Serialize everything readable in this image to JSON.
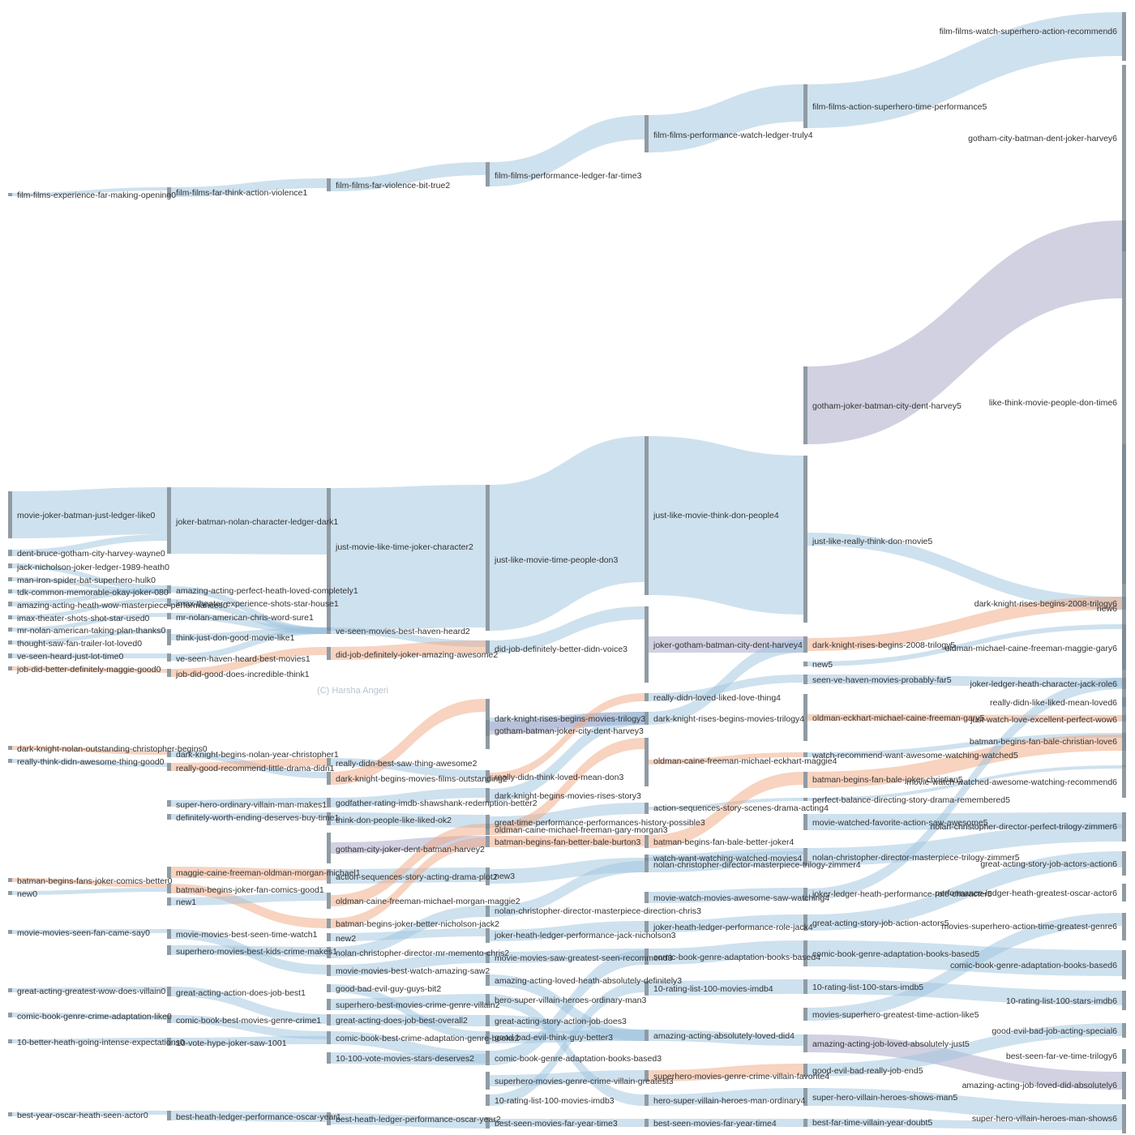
{
  "watermark": "(C) Harsha Angeri",
  "colors": {
    "blue": "#9dc3de",
    "blue_dark": "#7aa7c7",
    "purple": "#a4a4c6",
    "orange": "#f0a782",
    "node": "#7d8a93"
  },
  "levels": [
    {
      "level": 0,
      "nodes": [
        "film-films-experience-far-making-opening0",
        "movie-joker-batman-just-ledger-like0",
        "dent-bruce-gotham-city-harvey-wayne0",
        "jack-nicholson-joker-ledger-1989-heath0",
        "man-iron-spider-bat-superhero-hulk0",
        "tdk-common-memorable-okay-joker-080",
        "amazing-acting-heath-wow-masterpiece-performances0",
        "imax-theater-shots-shot-star-used0",
        "mr-nolan-american-taking-plan-thanks0",
        "thought-saw-fan-trailer-lot-loved0",
        "ve-seen-heard-just-lot-time0",
        "job-did-better-definitely-maggie-good0",
        "dark-knight-nolan-outstanding-christopher-begins0",
        "really-think-didn-awesome-thing-good0",
        "batman-begins-fans-joker-comics-better0",
        "new0",
        "movie-movies-seen-fan-came-say0",
        "great-acting-greatest-wow-does-villain0",
        "comic-book-genre-crime-adaptation-like0",
        "10-better-heath-going-intense-expectations0",
        "best-year-oscar-heath-seen-actor0"
      ]
    },
    {
      "level": 1,
      "nodes": [
        "film-films-far-think-action-violence1",
        "joker-batman-nolan-character-ledger-dark1",
        "amazing-acting-perfect-heath-loved-completely1",
        "imax-theater-experience-shots-star-house1",
        "mr-nolan-american-chris-word-sure1",
        "think-just-don-good-movie-like1",
        "ve-seen-haven-heard-best-movies1",
        "job-did-good-does-incredible-think1",
        "dark-knight-begins-nolan-year-christopher1",
        "really-good-recommend-little-drama-didn1",
        "super-hero-ordinary-villain-man-makes1",
        "definitely-worth-ending-deserves-buy-time1",
        "maggie-caine-freeman-oldman-morgan-michael1",
        "batman-begins-joker-fan-comics-good1",
        "new1",
        "movie-movies-best-seen-time-watch1",
        "superhero-movies-best-kids-crime-makes1",
        "great-acting-action-does-job-best1",
        "comic-book-best-movies-genre-crime1",
        "10-vote-hype-joker-saw-1001",
        "best-heath-ledger-performance-oscar-year1"
      ]
    },
    {
      "level": 2,
      "nodes": [
        "film-films-far-violence-bit-true2",
        "just-movie-like-time-joker-character2",
        "ve-seen-movies-best-haven-heard2",
        "did-job-definitely-joker-amazing-awesome2",
        "really-didn-best-saw-thing-awesome2",
        "dark-knight-begins-movies-films-outstanding2",
        "godfather-rating-imdb-shawshank-redemption-better2",
        "think-don-people-like-liked-ok2",
        "gotham-city-joker-dent-batman-harvey2",
        "action-sequences-story-acting-drama-plot2",
        "oldman-caine-freeman-michael-morgan-maggie2",
        "batman-begins-joker-better-nicholson-jack2",
        "new2",
        "nolan-christopher-director-mr-memento-chris2",
        "movie-movies-best-watch-amazing-saw2",
        "good-bad-evil-guy-guys-bit2",
        "superhero-best-movies-crime-genre-villain2",
        "great-acting-does-job-best-overall2",
        "comic-book-best-crime-adaptation-genre-books2",
        "10-100-vote-movies-stars-deserves2",
        "best-heath-ledger-performance-oscar-year2"
      ]
    },
    {
      "level": 3,
      "nodes": [
        "film-films-performance-ledger-far-time3",
        "just-like-movie-time-people-don3",
        "did-job-definitely-better-didn-voice3",
        "dark-knight-rises-begins-movies-trilogy3",
        "gotham-batman-joker-city-dent-harvey3",
        "really-didn-think-loved-mean-don3",
        "dark-knight-begins-movies-rises-story3",
        "great-time-performance-performances-history-possible3",
        "oldman-caine-michael-freeman-gary-morgan3",
        "batman-begins-fan-better-bale-burton3",
        "new3",
        "nolan-christopher-director-masterpiece-direction-chris3",
        "joker-heath-ledger-performance-jack-nicholson3",
        "movie-movies-saw-greatest-seen-recommend3",
        "amazing-acting-loved-heath-absolutely-definitely3",
        "hero-super-villain-heroes-ordinary-man3",
        "great-acting-story-action-job-does3",
        "good-bad-evil-think-guy-better3",
        "comic-book-genre-adaptation-books-based3",
        "superhero-movies-genre-crime-villain-greatest3",
        "10-rating-list-100-movies-imdb3",
        "best-seen-movies-far-year-time3"
      ]
    },
    {
      "level": 4,
      "nodes": [
        "film-films-performance-watch-ledger-truly4",
        "just-like-movie-think-don-people4",
        "joker-gotham-batman-city-dent-harvey4",
        "really-didn-loved-liked-love-thing4",
        "oldman-caine-freeman-michael-eckhart-maggie4",
        "dark-knight-rises-begins-movies-trilogy4",
        "action-sequences-story-scenes-drama-acting4",
        "batman-begins-fan-bale-better-joker4",
        "watch-want-watching-watched-movies4",
        "movie-watch-movies-awesome-saw-watching4",
        "joker-heath-ledger-performance-role-jack4",
        "nolan-christopher-director-masterpiece-trilogy-zimmer4",
        "comic-book-genre-adaptation-books-based4",
        "10-rating-list-100-movies-imdb4",
        "amazing-acting-absolutely-loved-did4",
        "superhero-movies-genre-crime-villain-favorite4",
        "hero-super-villain-heroes-man-ordinary4",
        "best-seen-movies-far-year-time4"
      ]
    },
    {
      "level": 5,
      "nodes": [
        "film-films-action-superhero-time-performance5",
        "gotham-joker-batman-city-dent-harvey5",
        "just-like-really-think-don-movie5",
        "dark-knight-rises-begins-2008-trilogy5",
        "new5",
        "seen-ve-haven-movies-probably-far5",
        "oldman-eckhart-michael-caine-freeman-gary5",
        "watch-recommend-want-awesome-watching-watched5",
        "batman-begins-fan-bale-joker-christian5",
        "perfect-balance-directing-story-drama-remembered5",
        "movie-watched-favorite-action-saw-awesome5",
        "nolan-christopher-director-masterpiece-trilogy-zimmer5",
        "joker-ledger-heath-performance-role-character5",
        "great-acting-story-job-action-actors5",
        "comic-book-genre-adaptation-books-based5",
        "10-rating-list-100-stars-imdb5",
        "movies-superhero-greatest-time-action-like5",
        "amazing-acting-job-loved-absolutely-just5",
        "good-evil-bad-really-job-end5",
        "super-hero-villain-heroes-shows-man5",
        "best-far-time-villain-year-doubt5"
      ]
    },
    {
      "level": 6,
      "nodes": [
        "film-films-watch-superhero-action-recommend6",
        "gotham-city-batman-dent-joker-harvey6",
        "like-think-movie-people-don-time6",
        "new6",
        "dark-knight-rises-begins-2008-trilogy6",
        "oldman-michael-caine-freeman-maggie-gary6",
        "joker-ledger-heath-character-jack-role6",
        "really-didn-like-liked-mean-loved6",
        "just-watch-love-excellent-perfect-wow6",
        "batman-begins-fan-bale-christian-love6",
        "movie-watch-watched-awesome-watching-recommend6",
        "nolan-christopher-director-perfect-trilogy-zimmer6",
        "great-acting-story-job-actors-action6",
        "performance-ledger-heath-greatest-oscar-actor6",
        "movies-superhero-action-time-greatest-genre6",
        "comic-book-genre-adaptation-books-based6",
        "10-rating-list-100-stars-imdb6",
        "good-evil-bad-job-acting-special6",
        "best-seen-far-ve-time-trilogy6",
        "amazing-acting-job-loved-did-absolutely6",
        "super-hero-villain-heroes-man-shows6"
      ]
    }
  ]
}
